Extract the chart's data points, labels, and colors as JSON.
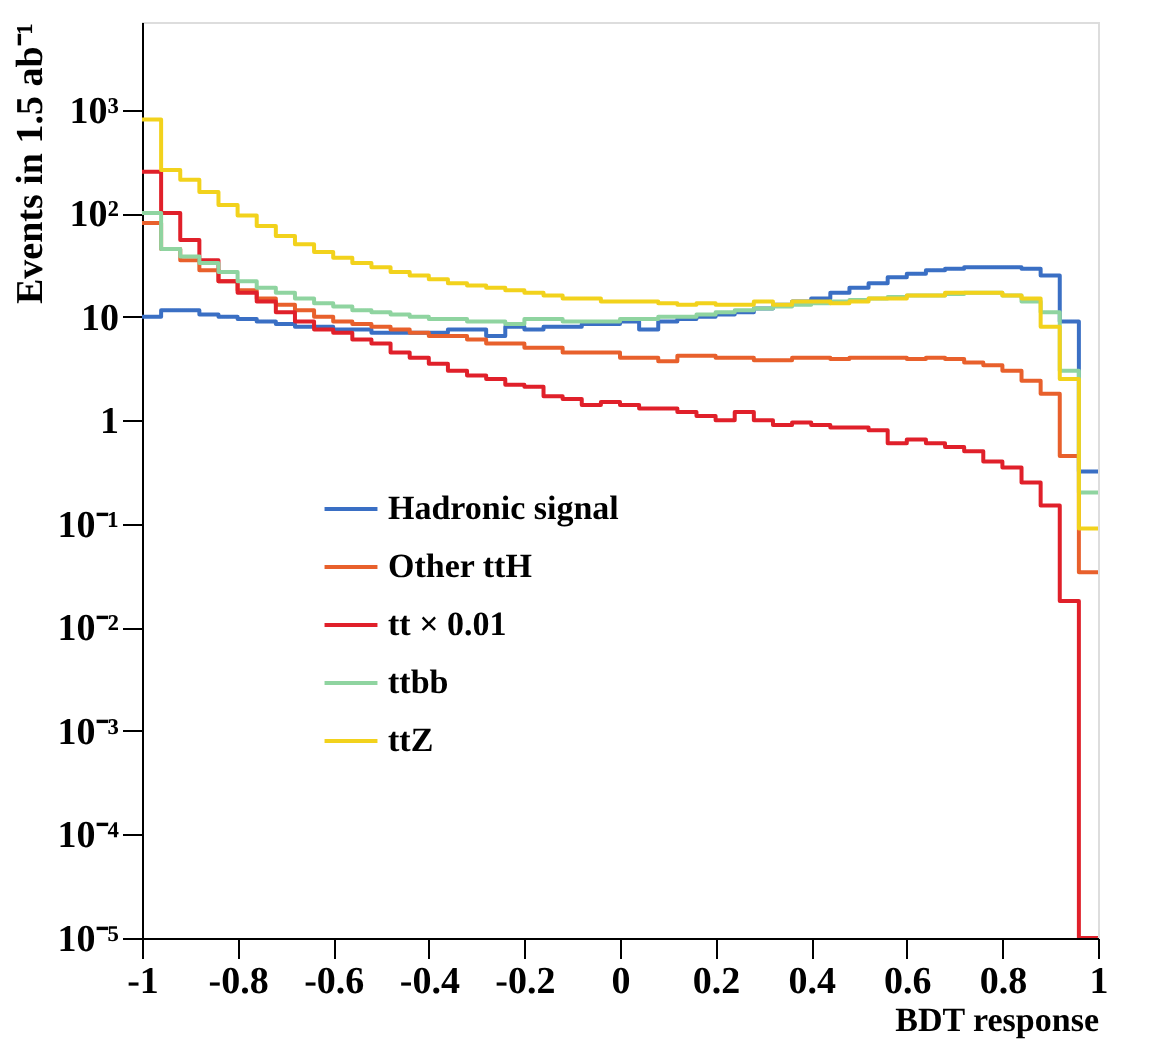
{
  "chart_data": {
    "type": "histogram",
    "xlabel": "BDT response",
    "ylabel": "Events in 1.5 ab⁻¹",
    "bins": [
      -1,
      -0.96,
      -0.92,
      -0.88,
      -0.84,
      -0.8,
      -0.76,
      -0.72,
      -0.68,
      -0.64,
      -0.6,
      -0.56,
      -0.52,
      -0.48,
      -0.44,
      -0.4,
      -0.36,
      -0.32,
      -0.28,
      -0.24,
      -0.2,
      -0.16,
      -0.12,
      -0.08,
      -0.04,
      0,
      0.04,
      0.08,
      0.12,
      0.16,
      0.2,
      0.24,
      0.28,
      0.32,
      0.36,
      0.4,
      0.44,
      0.48,
      0.52,
      0.56,
      0.6,
      0.64,
      0.68,
      0.72,
      0.76,
      0.8,
      0.84,
      0.88,
      0.92,
      0.96,
      1
    ],
    "series": [
      {
        "name": "Hadronic signal",
        "color": "#3a6fc4",
        "values": [
          10,
          11.5,
          11.5,
          10.5,
          10,
          9.5,
          9,
          8.5,
          8,
          8,
          7.5,
          7.5,
          7,
          7,
          7,
          7,
          7.5,
          7.5,
          6.5,
          8,
          7.5,
          8,
          8,
          8.5,
          8.5,
          9,
          7.5,
          9,
          9.5,
          10,
          10.5,
          11,
          12,
          13,
          14,
          15,
          17,
          19,
          21,
          24,
          26,
          28,
          29,
          30,
          30,
          30,
          29,
          25,
          9,
          0.32
        ]
      },
      {
        "name": "Other ttH",
        "color": "#e8602c",
        "values": [
          80,
          45,
          35,
          28,
          22,
          18,
          15,
          13,
          11.5,
          10,
          9,
          8.5,
          8,
          7.5,
          7,
          6.5,
          6.5,
          6,
          5.5,
          5.5,
          5,
          5,
          4.5,
          4.5,
          4.5,
          4,
          4,
          3.7,
          4.2,
          4.2,
          4,
          4,
          3.8,
          3.8,
          4,
          4,
          3.9,
          4,
          4,
          4,
          3.9,
          4,
          3.9,
          3.6,
          3.4,
          3,
          2.4,
          1.8,
          0.45,
          0.034
        ]
      },
      {
        "name": "tt  × 0.01",
        "color": "#e0202a",
        "values": [
          250,
          100,
          55,
          35,
          22,
          17,
          14,
          11,
          9,
          7.5,
          7,
          6,
          5.5,
          4.5,
          4,
          3.5,
          3,
          2.7,
          2.5,
          2.2,
          2.1,
          1.7,
          1.6,
          1.4,
          1.5,
          1.4,
          1.3,
          1.3,
          1.2,
          1.1,
          1,
          1.2,
          1,
          0.9,
          0.95,
          0.9,
          0.85,
          0.85,
          0.8,
          0.6,
          0.65,
          0.6,
          0.55,
          0.5,
          0.4,
          0.35,
          0.25,
          0.15,
          0.018,
          1e-05
        ]
      },
      {
        "name": "ttbb",
        "color": "#8fd4a0",
        "values": [
          100,
          45,
          38,
          33,
          27,
          22,
          19,
          17,
          15,
          13.5,
          12.5,
          11.5,
          11,
          10.5,
          10,
          9.5,
          9.5,
          9,
          9,
          8.5,
          9.5,
          9.5,
          9,
          9,
          9,
          9.5,
          9.5,
          10,
          10,
          10.5,
          11,
          11.5,
          12,
          12.5,
          13,
          13.5,
          14,
          14.5,
          15,
          15.5,
          16,
          16,
          16.5,
          17,
          17,
          16,
          14,
          11,
          3,
          0.2
        ]
      },
      {
        "name": "ttZ",
        "color": "#f2d21c",
        "values": [
          800,
          260,
          210,
          160,
          120,
          95,
          75,
          60,
          50,
          42,
          37,
          33,
          30,
          27,
          25,
          23,
          21,
          20,
          19,
          18,
          17,
          16,
          15,
          15,
          14,
          14,
          14,
          13.5,
          13,
          13.5,
          13,
          13,
          14,
          13,
          14,
          14,
          13.5,
          14,
          15,
          15,
          16,
          16,
          17,
          17,
          17,
          16,
          15,
          8,
          2.5,
          0.09
        ]
      }
    ],
    "xlim": [
      -1,
      1
    ],
    "xticks": [
      -1,
      -0.8,
      -0.6,
      -0.4,
      -0.2,
      0,
      0.2,
      0.4,
      0.6,
      0.8,
      1
    ],
    "ylim": [
      1e-05,
      7000
    ],
    "yticks": [
      {
        "value": 1e-05,
        "label": "10⁻⁵"
      },
      {
        "value": 0.0001,
        "label": "10⁻⁴"
      },
      {
        "value": 0.001,
        "label": "10⁻³"
      },
      {
        "value": 0.01,
        "label": "10⁻²"
      },
      {
        "value": 0.1,
        "label": "10⁻¹"
      },
      {
        "value": 1,
        "label": "1"
      },
      {
        "value": 10,
        "label": "10"
      },
      {
        "value": 100,
        "label": "10²"
      },
      {
        "value": 1000,
        "label": "10³"
      }
    ],
    "log": "y",
    "grid": false,
    "legend": "bottom left",
    "line_style": "solid"
  }
}
